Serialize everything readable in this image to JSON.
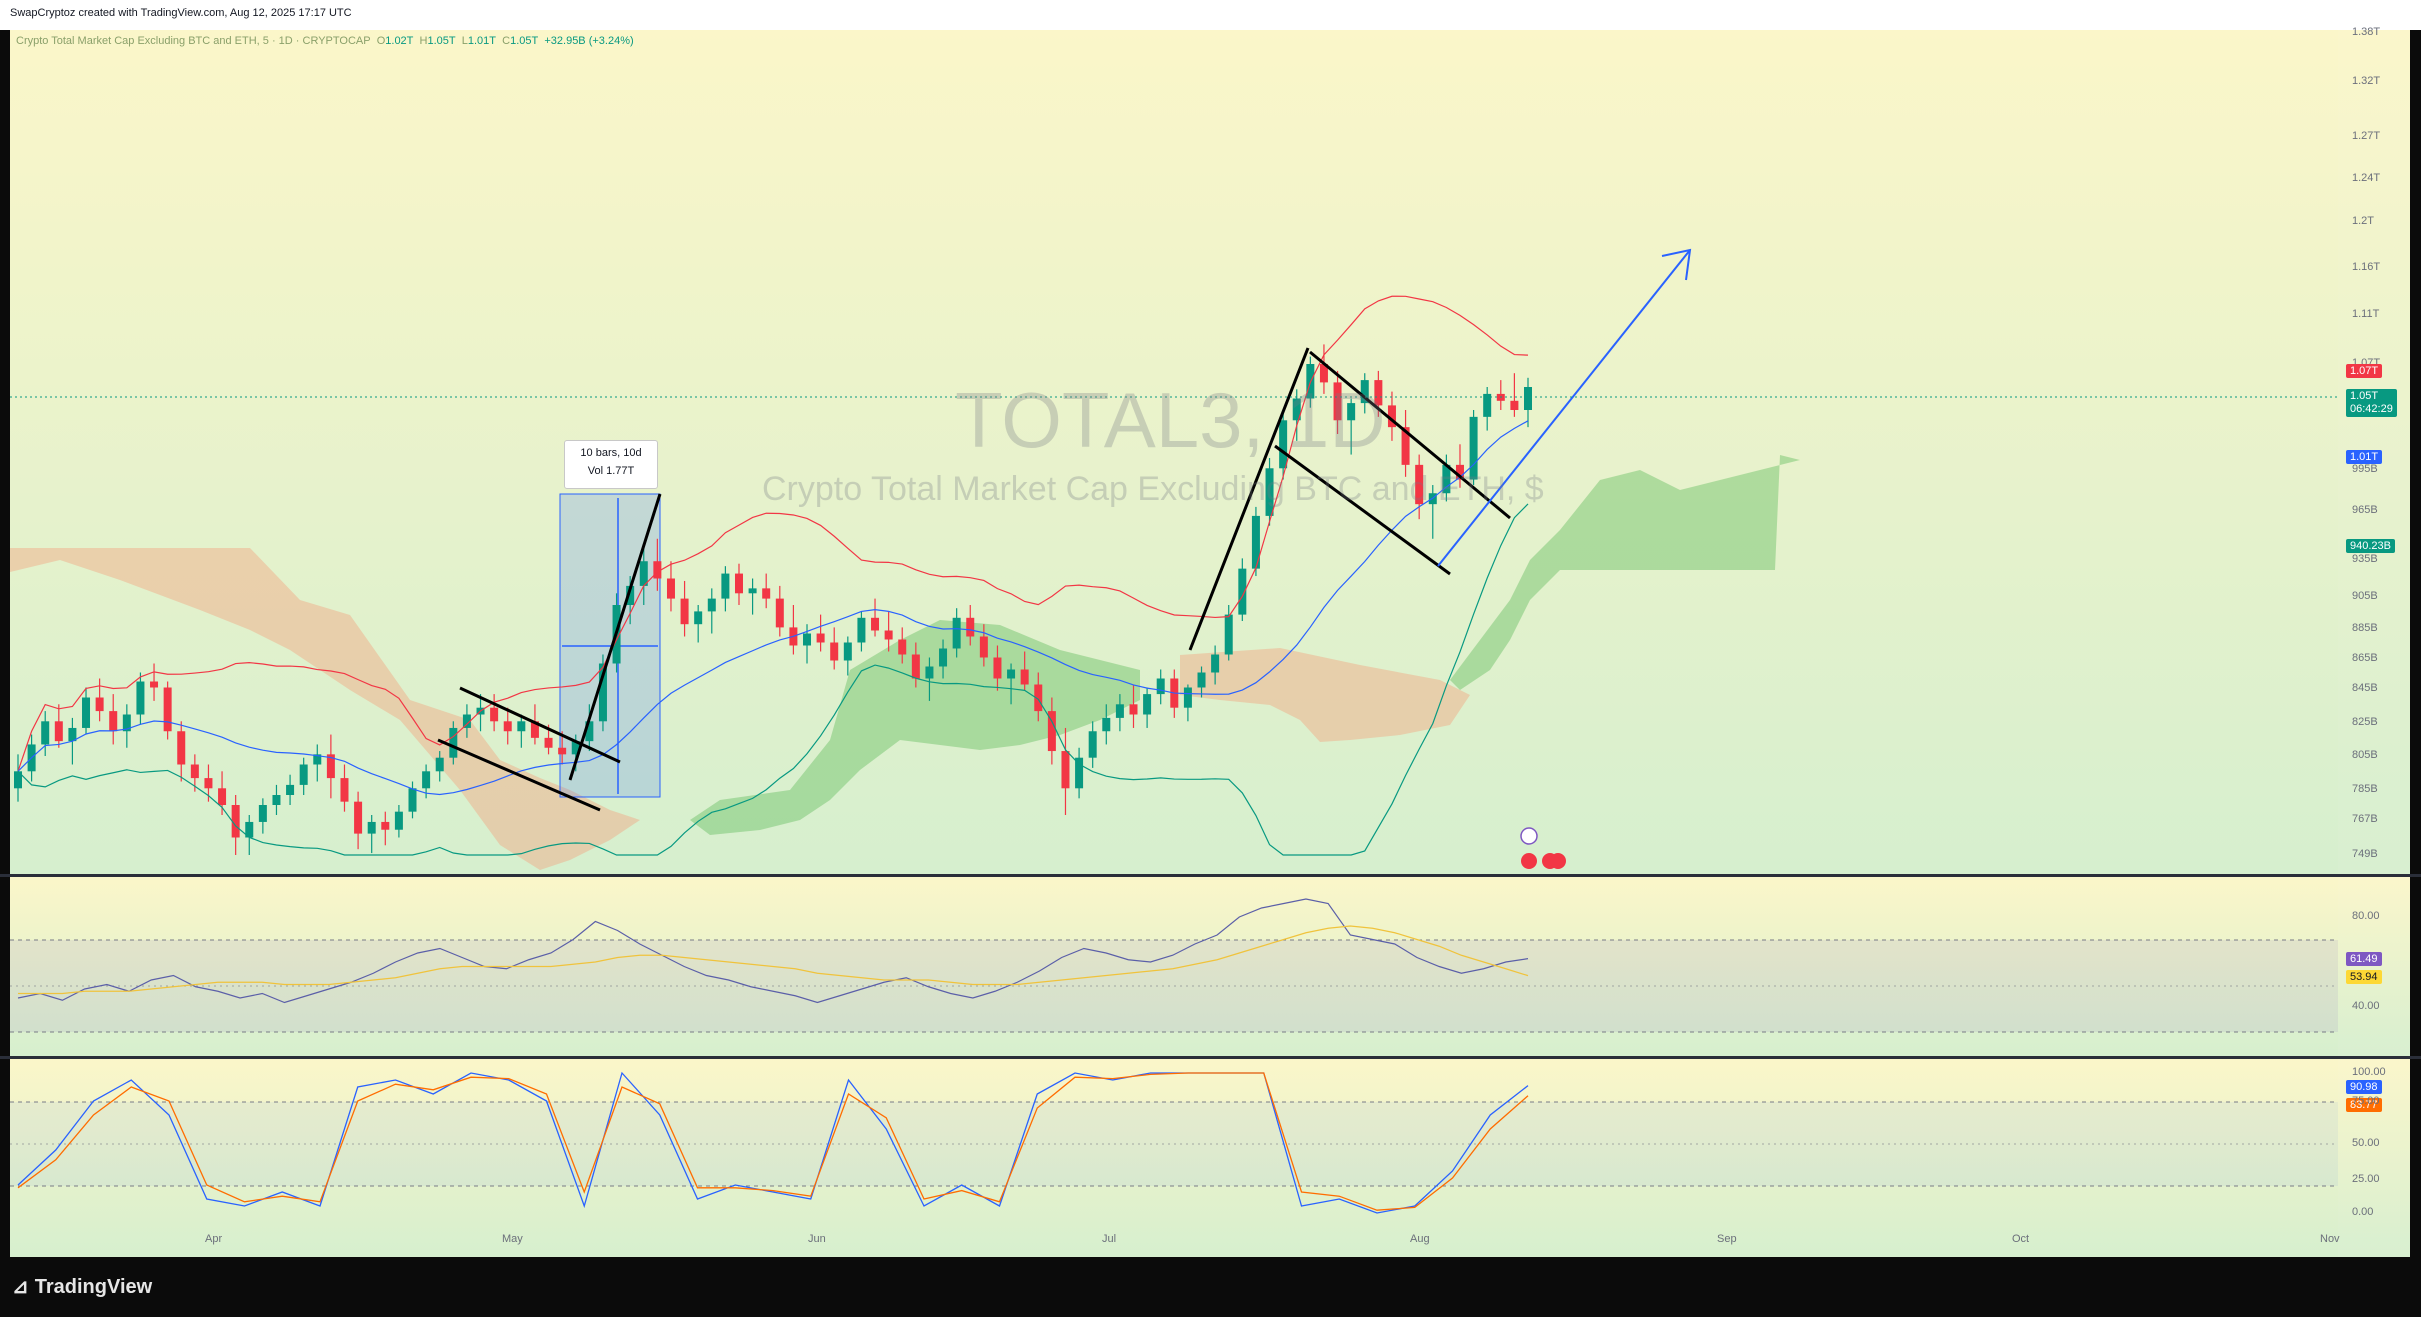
{
  "credit": "SwapCryptoz created with TradingView.com, Aug 12, 2025 17:17 UTC",
  "legend": {
    "title": "Crypto Total Market Cap Excluding BTC and ETH, 5 · 1D · CRYPTOCAP",
    "o_label": "O",
    "o": "1.02T",
    "h_label": "H",
    "h": "1.05T",
    "l_label": "L",
    "l": "1.01T",
    "c_label": "C",
    "c": "1.05T",
    "change": "+32.95B (+3.24%)"
  },
  "watermark": {
    "symbol": "TOTAL3, 1D",
    "description": "Crypto Total Market Cap Excluding BTC and ETH, $"
  },
  "measure_tooltip": {
    "line1": "10 bars, 10d",
    "line2": "Vol 1.77T"
  },
  "price_badges": {
    "bb_upper": {
      "text": "1.07T",
      "color": "#f23645"
    },
    "last": {
      "text": "1.05T",
      "countdown": "06:42:29",
      "color": "#089981"
    },
    "bb_basis": {
      "text": "1.01T",
      "color": "#2962ff"
    },
    "bb_lower": {
      "text": "940.23B",
      "color": "#089981"
    }
  },
  "rsi_badges": {
    "rsi": {
      "text": "61.49",
      "color": "#7e57c2"
    },
    "rsi_ma": {
      "text": "53.94",
      "color": "#fdd835"
    }
  },
  "stoch_badges": {
    "k": {
      "text": "90.98",
      "color": "#2962ff"
    },
    "d": {
      "text": "83.77",
      "color": "#ff6d00"
    }
  },
  "brand": "TradingView",
  "colors": {
    "up": "#089981",
    "down": "#f23645",
    "bg": "#f6f7d9",
    "basis": "#2962ff",
    "upper": "#f23645",
    "lower": "#089981"
  },
  "chart_data": [
    {
      "type": "candlestick",
      "title": "Crypto Total Market Cap Excluding BTC and ETH, 5 · 1D · CRYPTOCAP",
      "y_ticks": [
        "1.38T",
        "1.32T",
        "1.27T",
        "1.24T",
        "1.2T",
        "1.16T",
        "1.11T",
        "1.07T",
        "1.03T",
        "995B",
        "965B",
        "935B",
        "905B",
        "885B",
        "865B",
        "845B",
        "825B",
        "805B",
        "785B",
        "767B",
        "749B"
      ],
      "x_ticks": [
        "Apr",
        "May",
        "Jun",
        "Jul",
        "Aug",
        "Sep",
        "Oct",
        "Nov"
      ],
      "ohlc_approx_B": [
        [
          786,
          806,
          778,
          796
        ],
        [
          796,
          818,
          790,
          812
        ],
        [
          812,
          832,
          805,
          826
        ],
        [
          826,
          836,
          810,
          814
        ],
        [
          814,
          828,
          800,
          822
        ],
        [
          822,
          846,
          818,
          840
        ],
        [
          840,
          852,
          826,
          832
        ],
        [
          832,
          842,
          812,
          820
        ],
        [
          820,
          836,
          810,
          830
        ],
        [
          830,
          856,
          824,
          850
        ],
        [
          850,
          862,
          838,
          846
        ],
        [
          846,
          850,
          815,
          820
        ],
        [
          820,
          826,
          790,
          800
        ],
        [
          800,
          806,
          784,
          792
        ],
        [
          792,
          800,
          778,
          786
        ],
        [
          786,
          796,
          770,
          776
        ],
        [
          776,
          782,
          748,
          758
        ],
        [
          758,
          770,
          746,
          766
        ],
        [
          766,
          780,
          760,
          776
        ],
        [
          776,
          788,
          770,
          782
        ],
        [
          782,
          794,
          776,
          788
        ],
        [
          788,
          804,
          782,
          800
        ],
        [
          800,
          812,
          790,
          806
        ],
        [
          806,
          818,
          780,
          792
        ],
        [
          792,
          800,
          772,
          778
        ],
        [
          778,
          784,
          752,
          760
        ],
        [
          760,
          770,
          750,
          766
        ],
        [
          766,
          772,
          754,
          762
        ],
        [
          762,
          776,
          758,
          772
        ],
        [
          772,
          790,
          768,
          786
        ],
        [
          786,
          800,
          780,
          796
        ],
        [
          796,
          808,
          790,
          804
        ],
        [
          804,
          826,
          800,
          822
        ],
        [
          822,
          836,
          816,
          830
        ],
        [
          830,
          842,
          820,
          834
        ],
        [
          834,
          842,
          820,
          826
        ],
        [
          826,
          834,
          812,
          820
        ],
        [
          820,
          830,
          810,
          826
        ],
        [
          826,
          836,
          812,
          816
        ],
        [
          816,
          824,
          806,
          810
        ],
        [
          810,
          820,
          800,
          806
        ],
        [
          806,
          818,
          796,
          814
        ],
        [
          814,
          836,
          808,
          826
        ],
        [
          826,
          868,
          820,
          862
        ],
        [
          862,
          908,
          856,
          900
        ],
        [
          900,
          922,
          888,
          914
        ],
        [
          914,
          944,
          900,
          934
        ],
        [
          934,
          948,
          910,
          920
        ],
        [
          920,
          934,
          896,
          904
        ],
        [
          904,
          918,
          880,
          888
        ],
        [
          888,
          900,
          876,
          896
        ],
        [
          896,
          912,
          882,
          904
        ],
        [
          904,
          930,
          896,
          924
        ],
        [
          924,
          932,
          900,
          908
        ],
        [
          908,
          920,
          894,
          912
        ],
        [
          912,
          924,
          898,
          904
        ],
        [
          904,
          914,
          880,
          886
        ],
        [
          886,
          900,
          868,
          874
        ],
        [
          874,
          888,
          862,
          882
        ],
        [
          882,
          894,
          870,
          876
        ],
        [
          876,
          886,
          858,
          864
        ],
        [
          864,
          880,
          854,
          876
        ],
        [
          876,
          896,
          870,
          892
        ],
        [
          892,
          904,
          880,
          884
        ],
        [
          884,
          896,
          870,
          878
        ],
        [
          878,
          886,
          862,
          868
        ],
        [
          868,
          876,
          846,
          852
        ],
        [
          852,
          866,
          838,
          860
        ],
        [
          860,
          878,
          852,
          872
        ],
        [
          872,
          898,
          866,
          892
        ],
        [
          892,
          900,
          874,
          880
        ],
        [
          880,
          888,
          860,
          866
        ],
        [
          866,
          874,
          844,
          852
        ],
        [
          852,
          862,
          836,
          858
        ],
        [
          858,
          870,
          844,
          848
        ],
        [
          848,
          856,
          826,
          832
        ],
        [
          832,
          840,
          800,
          808
        ],
        [
          808,
          822,
          770,
          786
        ],
        [
          786,
          810,
          780,
          804
        ],
        [
          804,
          826,
          798,
          820
        ],
        [
          820,
          836,
          812,
          828
        ],
        [
          828,
          842,
          820,
          836
        ],
        [
          836,
          848,
          822,
          830
        ],
        [
          830,
          846,
          822,
          842
        ],
        [
          842,
          858,
          836,
          852
        ],
        [
          852,
          858,
          828,
          834
        ],
        [
          834,
          848,
          826,
          846
        ],
        [
          846,
          860,
          840,
          856
        ],
        [
          856,
          874,
          848,
          868
        ],
        [
          868,
          900,
          864,
          894
        ],
        [
          894,
          936,
          890,
          928
        ],
        [
          928,
          968,
          922,
          962
        ],
        [
          962,
          1002,
          956,
          996
        ],
        [
          996,
          1030,
          988,
          1024
        ],
        [
          1024,
          1048,
          1012,
          1040
        ],
        [
          1040,
          1076,
          1032,
          1070
        ],
        [
          1070,
          1086,
          1044,
          1054
        ],
        [
          1054,
          1064,
          1016,
          1024
        ],
        [
          1024,
          1040,
          1004,
          1036
        ],
        [
          1036,
          1062,
          1028,
          1056
        ],
        [
          1056,
          1064,
          1026,
          1034
        ],
        [
          1034,
          1046,
          1012,
          1020
        ],
        [
          1020,
          1030,
          990,
          998
        ],
        [
          998,
          1004,
          960,
          970
        ],
        [
          970,
          984,
          948,
          978
        ],
        [
          978,
          1004,
          972,
          998
        ],
        [
          998,
          1010,
          982,
          988
        ],
        [
          988,
          1030,
          984,
          1026
        ],
        [
          1026,
          1050,
          1018,
          1044
        ],
        [
          1044,
          1056,
          1030,
          1038
        ],
        [
          1038,
          1062,
          1026,
          1030
        ],
        [
          1030,
          1058,
          1020,
          1050
        ]
      ],
      "bb_upper_B": [
        1086,
        1080,
        1074,
        1070,
        1068,
        1070,
        1072,
        1070,
        1072
      ],
      "bb_basis_B": [
        1010,
        1008,
        1005,
        1004,
        1006,
        1008,
        1010,
        1010,
        1012
      ],
      "bb_lower_B": [
        946,
        942,
        940,
        938,
        940,
        942,
        944,
        942,
        940
      ]
    },
    {
      "type": "line",
      "title": "RSI",
      "y_ticks": [
        "80.00",
        "40.00"
      ],
      "series": [
        {
          "name": "RSI",
          "values": [
            44,
            46,
            43,
            48,
            50,
            47,
            52,
            54,
            49,
            47,
            44,
            46,
            42,
            45,
            48,
            51,
            55,
            60,
            64,
            66,
            62,
            58,
            57,
            61,
            64,
            70,
            78,
            74,
            68,
            63,
            58,
            54,
            52,
            49,
            47,
            45,
            42,
            45,
            48,
            51,
            53,
            49,
            46,
            44,
            47,
            51,
            56,
            62,
            66,
            64,
            61,
            60,
            63,
            68,
            72,
            80,
            84,
            86,
            88,
            86,
            72,
            70,
            68,
            62,
            58,
            55,
            57,
            60,
            61.49
          ]
        },
        {
          "name": "MA",
          "values": [
            46,
            46,
            46,
            47,
            47,
            47,
            48,
            49,
            50,
            51,
            51,
            51,
            50,
            50,
            50,
            51,
            52,
            53,
            55,
            57,
            58,
            58,
            58,
            58,
            58,
            59,
            60,
            62,
            63,
            63,
            62,
            61,
            60,
            59,
            58,
            57,
            55,
            54,
            53,
            52,
            52,
            52,
            51,
            50,
            50,
            50,
            51,
            52,
            53,
            54,
            55,
            56,
            57,
            59,
            61,
            64,
            67,
            70,
            73,
            75,
            76,
            75,
            73,
            70,
            67,
            63,
            60,
            57,
            53.94
          ]
        }
      ]
    },
    {
      "type": "line",
      "title": "Stoch RSI",
      "y_ticks": [
        "100.00",
        "75.00",
        "50.00",
        "25.00",
        "0.00"
      ],
      "series": [
        {
          "name": "K",
          "values": [
            20,
            45,
            80,
            95,
            70,
            10,
            5,
            15,
            5,
            90,
            95,
            85,
            100,
            95,
            80,
            5,
            100,
            70,
            10,
            20,
            15,
            10,
            95,
            60,
            5,
            20,
            5,
            85,
            100,
            95,
            100,
            100,
            100,
            100,
            5,
            10,
            0,
            5,
            30,
            70,
            90.98
          ]
        },
        {
          "name": "D",
          "values": [
            18,
            38,
            70,
            90,
            80,
            20,
            8,
            12,
            8,
            80,
            92,
            88,
            97,
            96,
            85,
            15,
            90,
            78,
            18,
            18,
            16,
            12,
            85,
            68,
            10,
            16,
            8,
            75,
            97,
            96,
            99,
            100,
            100,
            100,
            15,
            12,
            2,
            4,
            25,
            60,
            83.77
          ]
        }
      ]
    }
  ]
}
